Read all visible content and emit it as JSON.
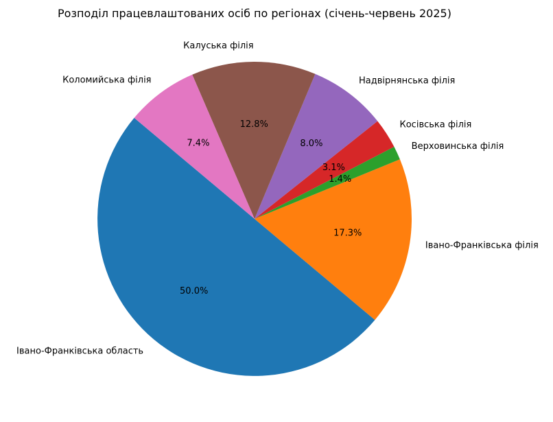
{
  "chart_data": {
    "type": "pie",
    "title": "Розподіл працевлаштованих осіб по регіонах (січень-червень 2025)",
    "start_angle": 140,
    "direction": "counterclockwise",
    "slices": [
      {
        "label": "Івано-Франківська область",
        "value": 50.0,
        "pct_label": "50.0%",
        "color": "#1f77b4"
      },
      {
        "label": "Івано-Франківська філія",
        "value": 17.3,
        "pct_label": "17.3%",
        "color": "#ff7f0e"
      },
      {
        "label": "Верховинська філія",
        "value": 1.4,
        "pct_label": "1.4%",
        "color": "#2ca02c"
      },
      {
        "label": "Косівська філія",
        "value": 3.1,
        "pct_label": "3.1%",
        "color": "#d62728"
      },
      {
        "label": "Надвірнянська філія",
        "value": 8.0,
        "pct_label": "8.0%",
        "color": "#9467bd"
      },
      {
        "label": "Калуська філія",
        "value": 12.8,
        "pct_label": "12.8%",
        "color": "#8c564b"
      },
      {
        "label": "Коломийська філія",
        "value": 7.4,
        "pct_label": "7.4%",
        "color": "#e377c2"
      }
    ]
  }
}
